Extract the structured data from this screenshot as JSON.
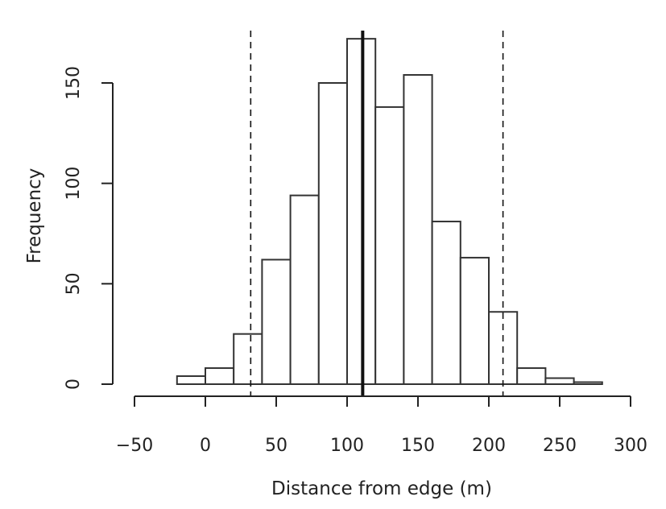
{
  "chart_data": {
    "type": "bar",
    "xlabel": "Distance from edge (m)",
    "ylabel": "Frequency",
    "xlim": [
      -50,
      300
    ],
    "ylim": [
      0,
      150
    ],
    "x_ticks": [
      -50,
      0,
      50,
      100,
      150,
      200,
      250,
      300
    ],
    "y_ticks": [
      0,
      50,
      100,
      150
    ],
    "bin_width": 20,
    "bins": [
      {
        "x0": -20,
        "x1": 0,
        "value": 4
      },
      {
        "x0": 0,
        "x1": 20,
        "value": 8
      },
      {
        "x0": 20,
        "x1": 40,
        "value": 25
      },
      {
        "x0": 40,
        "x1": 60,
        "value": 62
      },
      {
        "x0": 60,
        "x1": 80,
        "value": 94
      },
      {
        "x0": 80,
        "x1": 100,
        "value": 150
      },
      {
        "x0": 100,
        "x1": 120,
        "value": 172
      },
      {
        "x0": 120,
        "x1": 140,
        "value": 138
      },
      {
        "x0": 140,
        "x1": 160,
        "value": 154
      },
      {
        "x0": 160,
        "x1": 180,
        "value": 81
      },
      {
        "x0": 180,
        "x1": 200,
        "value": 63
      },
      {
        "x0": 200,
        "x1": 220,
        "value": 36
      },
      {
        "x0": 220,
        "x1": 240,
        "value": 8
      },
      {
        "x0": 240,
        "x1": 260,
        "value": 3
      },
      {
        "x0": 260,
        "x1": 280,
        "value": 1
      }
    ],
    "vertical_lines": [
      {
        "x": 32,
        "style": "dashed"
      },
      {
        "x": 111,
        "style": "solid"
      },
      {
        "x": 210,
        "style": "dashed"
      }
    ],
    "grid": false,
    "colors": {
      "bar_fill": "#ffffff",
      "bar_stroke": "#333333",
      "line": "#111111"
    }
  }
}
